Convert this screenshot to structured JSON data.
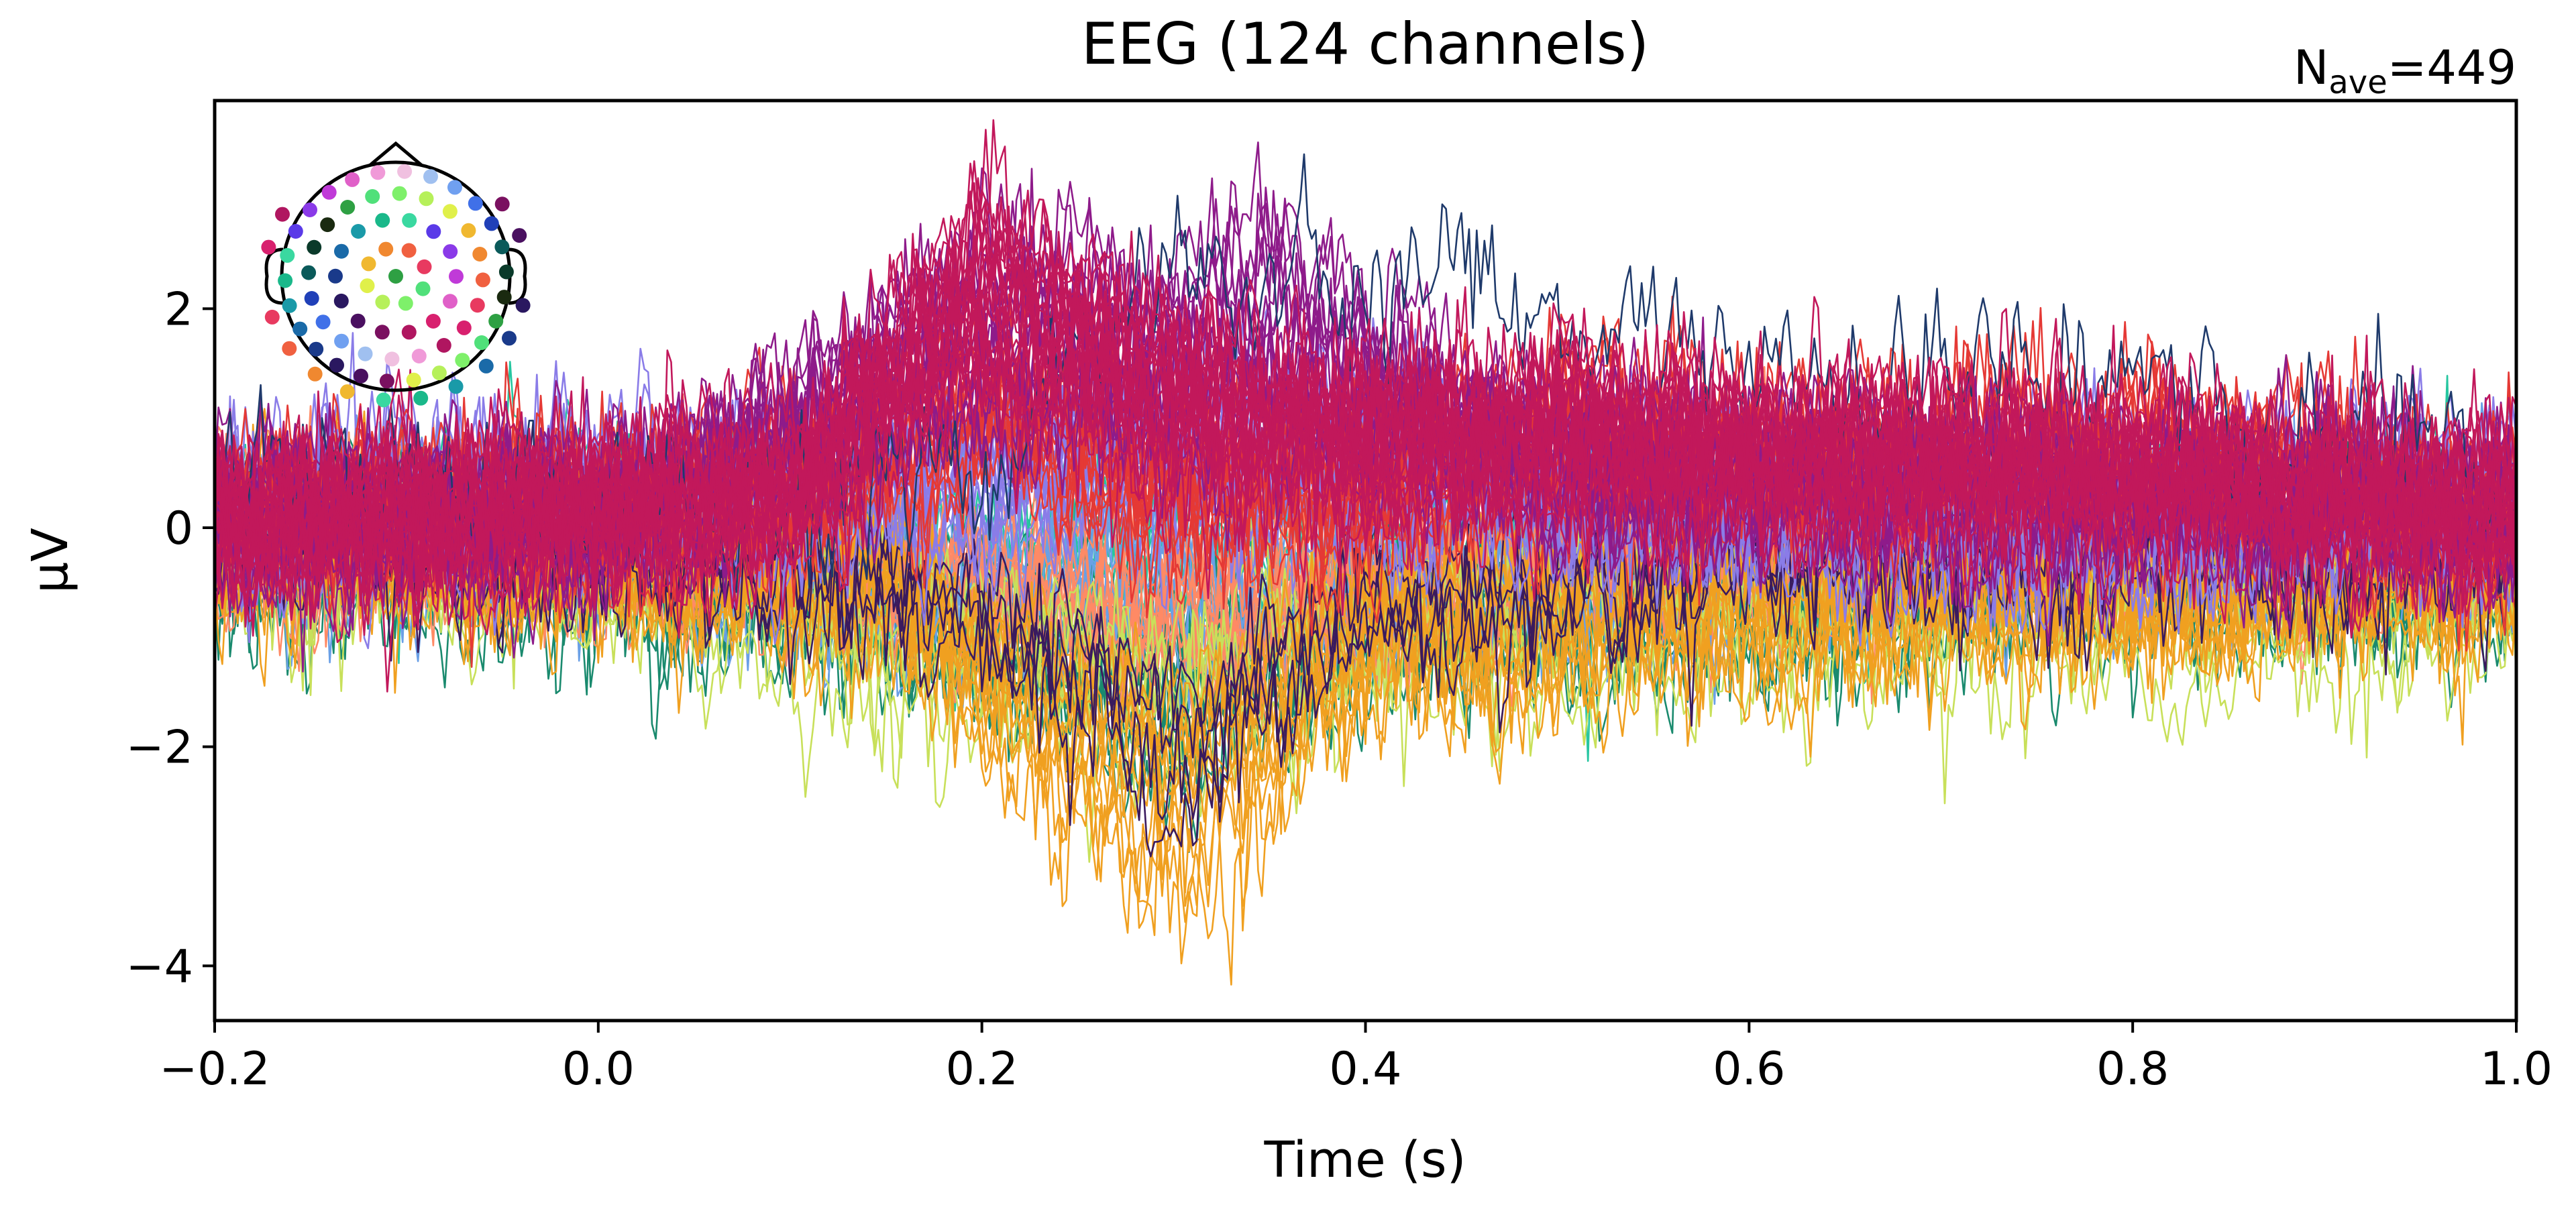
{
  "chart_data": {
    "type": "line",
    "title": "EEG (124 channels)",
    "annotation": {
      "label": "N",
      "subscript": "ave",
      "text": "=449"
    },
    "xlabel": "Time (s)",
    "ylabel": "µV",
    "xlim": [
      -0.2,
      1.0
    ],
    "ylim": [
      -4.5,
      3.9
    ],
    "xticks": [
      -0.2,
      0.0,
      0.2,
      0.4,
      0.6,
      0.8,
      1.0
    ],
    "xtick_labels": [
      "−0.2",
      "0.0",
      "0.2",
      "0.4",
      "0.6",
      "0.8",
      "1.0"
    ],
    "yticks": [
      -4,
      -2,
      0,
      2
    ],
    "ytick_labels": [
      "−4",
      "−2",
      "0",
      "2"
    ],
    "grid": false,
    "legend": "none",
    "inset": {
      "type": "sensor-topomap",
      "placement": "top-left"
    },
    "series_count": 124,
    "series_groups": [
      {
        "color": "#c2185b",
        "count": 22,
        "envelope": [
          [
            -0.2,
            0.1
          ],
          [
            0.0,
            0.2
          ],
          [
            0.1,
            0.3
          ],
          [
            0.15,
            1.5
          ],
          [
            0.2,
            2.4
          ],
          [
            0.25,
            1.9
          ],
          [
            0.3,
            1.2
          ],
          [
            0.4,
            0.9
          ],
          [
            0.5,
            1.0
          ],
          [
            0.6,
            0.7
          ],
          [
            0.8,
            0.6
          ],
          [
            1.0,
            0.1
          ]
        ]
      },
      {
        "color": "#8e1b8a",
        "count": 14,
        "envelope": [
          [
            -0.2,
            0.1
          ],
          [
            0.0,
            0.2
          ],
          [
            0.15,
            1.6
          ],
          [
            0.2,
            2.2
          ],
          [
            0.3,
            1.8
          ],
          [
            0.35,
            2.3
          ],
          [
            0.4,
            1.6
          ],
          [
            0.5,
            0.6
          ],
          [
            0.7,
            0.4
          ],
          [
            1.0,
            0.2
          ]
        ]
      },
      {
        "color": "#1f3a6b",
        "count": 1,
        "envelope": [
          [
            -0.2,
            0.3
          ],
          [
            0.0,
            0.3
          ],
          [
            0.2,
            0.5
          ],
          [
            0.3,
            2.8
          ],
          [
            0.4,
            2.5
          ],
          [
            0.45,
            2.9
          ],
          [
            0.5,
            2.2
          ],
          [
            0.6,
            2.0
          ],
          [
            0.7,
            1.7
          ],
          [
            0.8,
            1.4
          ],
          [
            0.9,
            1.0
          ],
          [
            1.0,
            0.4
          ]
        ]
      },
      {
        "color": "#e53935",
        "count": 14,
        "envelope": [
          [
            -0.2,
            0.2
          ],
          [
            0.0,
            0.1
          ],
          [
            0.15,
            0.6
          ],
          [
            0.2,
            1.2
          ],
          [
            0.3,
            0.4
          ],
          [
            0.4,
            0.3
          ],
          [
            0.5,
            1.0
          ],
          [
            0.6,
            0.6
          ],
          [
            0.8,
            0.7
          ],
          [
            1.0,
            0.0
          ]
        ]
      },
      {
        "color": "#ff8a65",
        "count": 10,
        "envelope": [
          [
            -0.2,
            0.0
          ],
          [
            0.0,
            0.0
          ],
          [
            0.2,
            -0.6
          ],
          [
            0.3,
            -1.0
          ],
          [
            0.4,
            -0.6
          ],
          [
            0.6,
            -0.2
          ],
          [
            0.8,
            0.1
          ],
          [
            1.0,
            0.0
          ]
        ]
      },
      {
        "color": "#8a7ce8",
        "count": 14,
        "envelope": [
          [
            -0.2,
            0.2
          ],
          [
            0.0,
            0.3
          ],
          [
            0.2,
            0.6
          ],
          [
            0.3,
            0.9
          ],
          [
            0.4,
            0.8
          ],
          [
            0.5,
            0.3
          ],
          [
            0.7,
            0.1
          ],
          [
            1.0,
            0.3
          ]
        ]
      },
      {
        "color": "#6aa0e6",
        "count": 10,
        "envelope": [
          [
            -0.2,
            0.0
          ],
          [
            0.0,
            0.0
          ],
          [
            0.2,
            -0.4
          ],
          [
            0.35,
            -0.7
          ],
          [
            0.5,
            -0.4
          ],
          [
            0.7,
            -0.2
          ],
          [
            1.0,
            0.0
          ]
        ]
      },
      {
        "color": "#f0a020",
        "count": 12,
        "envelope": [
          [
            -0.2,
            -0.2
          ],
          [
            0.0,
            -0.3
          ],
          [
            0.15,
            -0.6
          ],
          [
            0.25,
            -2.2
          ],
          [
            0.3,
            -2.7
          ],
          [
            0.35,
            -2.0
          ],
          [
            0.4,
            -1.1
          ],
          [
            0.6,
            -0.8
          ],
          [
            0.8,
            -0.7
          ],
          [
            1.0,
            -0.5
          ]
        ]
      },
      {
        "color": "#c8e05a",
        "count": 5,
        "envelope": [
          [
            -0.2,
            -0.3
          ],
          [
            0.0,
            -0.4
          ],
          [
            0.2,
            -1.6
          ],
          [
            0.3,
            -1.8
          ],
          [
            0.4,
            -1.3
          ],
          [
            0.6,
            -1.0
          ],
          [
            0.8,
            -1.0
          ],
          [
            1.0,
            -0.9
          ]
        ]
      },
      {
        "color": "#1a8a6e",
        "count": 12,
        "envelope": [
          [
            -0.2,
            -0.2
          ],
          [
            0.0,
            -0.3
          ],
          [
            0.2,
            -1.0
          ],
          [
            0.3,
            -1.9
          ],
          [
            0.4,
            -1.0
          ],
          [
            0.6,
            -0.6
          ],
          [
            0.8,
            -0.5
          ],
          [
            1.0,
            -0.4
          ]
        ]
      },
      {
        "color": "#26c6a0",
        "count": 6,
        "envelope": [
          [
            -0.2,
            0.0
          ],
          [
            0.0,
            0.1
          ],
          [
            0.2,
            -0.3
          ],
          [
            0.35,
            -0.5
          ],
          [
            0.6,
            -0.2
          ],
          [
            1.0,
            0.0
          ]
        ]
      },
      {
        "color": "#3a1a5e",
        "count": 4,
        "envelope": [
          [
            -0.2,
            -0.1
          ],
          [
            0.0,
            -0.2
          ],
          [
            0.2,
            -0.8
          ],
          [
            0.3,
            -2.2
          ],
          [
            0.4,
            -0.9
          ],
          [
            0.6,
            -0.3
          ],
          [
            1.0,
            -0.2
          ]
        ]
      }
    ],
    "sensor_colors": [
      "#2ea043",
      "#50e07a",
      "#7ef06a",
      "#b6f05a",
      "#e0f04a",
      "#f0b830",
      "#f08830",
      "#f06040",
      "#e83a60",
      "#d8206e",
      "#b01660",
      "#7a1060",
      "#4a1060",
      "#2a1860",
      "#1a3a8a",
      "#1a6aa8",
      "#1a9aa8",
      "#1ab88a",
      "#3ad8a0",
      "#5a3ae8",
      "#8a3ae8",
      "#c03ad8",
      "#e060c8",
      "#f09ad8",
      "#f0c0e0",
      "#a0c0f0",
      "#70a0f0",
      "#4070e8",
      "#2040b8",
      "#0a5a5a",
      "#0a3a2a",
      "#1a2a10"
    ]
  }
}
